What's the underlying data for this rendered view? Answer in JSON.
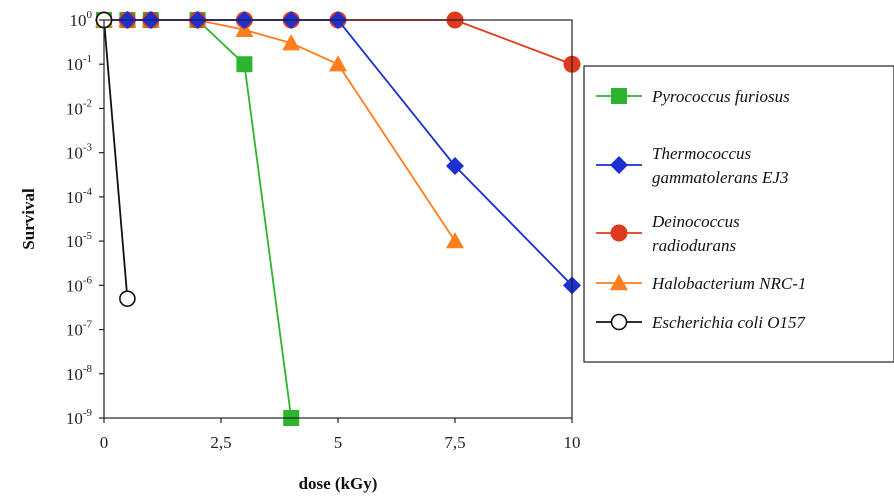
{
  "chart_data": {
    "type": "line",
    "title": "",
    "xlabel": "dose (kGy)",
    "ylabel": "Survival",
    "x_scale": "linear",
    "y_scale": "log",
    "xlim": [
      0,
      10
    ],
    "ylim": [
      1e-09,
      1
    ],
    "x_ticks": [
      0,
      2.5,
      5,
      7.5,
      10
    ],
    "x_tick_labels": [
      "0",
      "2,5",
      "5",
      "7,5",
      "10"
    ],
    "y_ticks": [
      0,
      -1,
      -2,
      -3,
      -4,
      -5,
      -6,
      -7,
      -8,
      -9
    ],
    "y_tick_labels": [
      {
        "base": "10",
        "exp": "0"
      },
      {
        "base": "10",
        "exp": "-1"
      },
      {
        "base": "10",
        "exp": "-2"
      },
      {
        "base": "10",
        "exp": "-3"
      },
      {
        "base": "10",
        "exp": "-4"
      },
      {
        "base": "10",
        "exp": "-5"
      },
      {
        "base": "10",
        "exp": "-6"
      },
      {
        "base": "10",
        "exp": "-7"
      },
      {
        "base": "10",
        "exp": "-8"
      },
      {
        "base": "10",
        "exp": "-9"
      }
    ],
    "grid": false,
    "legend_position": "right",
    "series": [
      {
        "name_parts": [
          "Pyrococcus furiosus"
        ],
        "color": "#2db52d",
        "marker": "square",
        "x": [
          0,
          0.5,
          1,
          2,
          3,
          4
        ],
        "y": [
          1,
          1,
          1,
          1,
          0.1,
          1e-09
        ]
      },
      {
        "name_parts": [
          "Thermococcus",
          "gammatolerans EJ3"
        ],
        "color": "#1c2fd1",
        "marker": "diamond",
        "x": [
          0,
          0.5,
          1,
          2,
          3,
          4,
          5,
          7.5,
          10
        ],
        "y": [
          1,
          1,
          1,
          1,
          1,
          1,
          1,
          0.0005,
          1e-06
        ]
      },
      {
        "name_parts": [
          "Deinococcus",
          "radiodurans"
        ],
        "color": "#e03a1e",
        "marker": "circle",
        "x": [
          0,
          0.5,
          1,
          2,
          3,
          4,
          5,
          7.5,
          10
        ],
        "y": [
          1,
          1,
          1,
          1,
          1,
          1,
          1,
          1,
          0.1
        ]
      },
      {
        "name_parts": [
          "Halobacterium NRC-1"
        ],
        "color": "#ff7f1e",
        "marker": "triangle",
        "x": [
          0,
          0.5,
          1,
          2,
          3,
          4,
          5,
          7.5
        ],
        "y": [
          1,
          1,
          1,
          1,
          0.6,
          0.3,
          0.1,
          1e-05
        ]
      },
      {
        "name_parts": [
          "Escherichia coli O157"
        ],
        "color": "#111111",
        "marker": "open-circle",
        "x": [
          0,
          0.5
        ],
        "y": [
          1,
          5e-07
        ]
      }
    ]
  }
}
